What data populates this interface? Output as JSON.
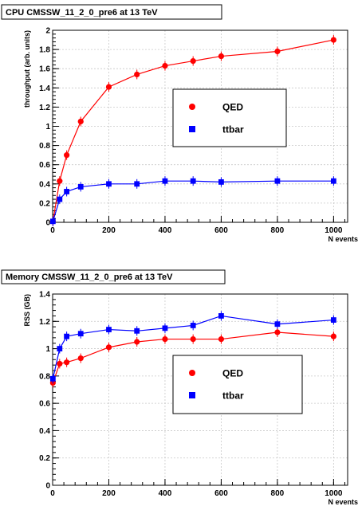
{
  "chart_data": [
    {
      "type": "line",
      "title": "CPU CMSSW_11_2_0_pre6 at 13 TeV",
      "xlabel": "N events",
      "ylabel": "throughput (arb. units)",
      "xlim": [
        0,
        1050
      ],
      "ylim": [
        0,
        2
      ],
      "x_ticks": [
        0,
        200,
        400,
        600,
        800,
        1000
      ],
      "y_ticks": [
        0,
        0.2,
        0.4,
        0.6,
        0.8,
        1,
        1.2,
        1.4,
        1.6,
        1.8,
        2
      ],
      "y_tick_labels": [
        "0",
        "0.2",
        "0.4",
        "0.6",
        "0.8",
        "1",
        "1.2",
        "1.4",
        "1.6",
        "1.8",
        "2"
      ],
      "grid": true,
      "legend_position": "center-right",
      "series": [
        {
          "name": "QED",
          "color": "#ff0000",
          "marker": "circle",
          "x": [
            1,
            25,
            50,
            100,
            200,
            300,
            400,
            500,
            600,
            800,
            1000
          ],
          "y": [
            0.01,
            0.43,
            0.7,
            1.05,
            1.41,
            1.54,
            1.63,
            1.68,
            1.73,
            1.78,
            1.9
          ]
        },
        {
          "name": "ttbar",
          "color": "#0000ff",
          "marker": "square",
          "x": [
            1,
            25,
            50,
            100,
            200,
            300,
            400,
            500,
            600,
            800,
            1000
          ],
          "y": [
            0.01,
            0.24,
            0.32,
            0.37,
            0.4,
            0.4,
            0.43,
            0.43,
            0.42,
            0.43,
            0.43
          ]
        }
      ]
    },
    {
      "type": "line",
      "title": "Memory CMSSW_11_2_0_pre6 at 13 TeV",
      "xlabel": "N events",
      "ylabel": "RSS (GB)",
      "xlim": [
        0,
        1050
      ],
      "ylim": [
        0,
        1.4
      ],
      "x_ticks": [
        0,
        200,
        400,
        600,
        800,
        1000
      ],
      "y_ticks": [
        0,
        0.2,
        0.4,
        0.6,
        0.8,
        1,
        1.2,
        1.4
      ],
      "y_tick_labels": [
        "0",
        "0.2",
        "0.4",
        "0.6",
        "0.8",
        "1",
        "1.2",
        "1.4"
      ],
      "grid": true,
      "legend_position": "center-right",
      "series": [
        {
          "name": "QED",
          "color": "#ff0000",
          "marker": "circle",
          "x": [
            1,
            25,
            50,
            100,
            200,
            300,
            400,
            500,
            600,
            800,
            1000
          ],
          "y": [
            0.75,
            0.89,
            0.9,
            0.93,
            1.01,
            1.05,
            1.07,
            1.07,
            1.07,
            1.12,
            1.09
          ]
        },
        {
          "name": "ttbar",
          "color": "#0000ff",
          "marker": "square",
          "x": [
            1,
            25,
            50,
            100,
            200,
            300,
            400,
            500,
            600,
            800,
            1000
          ],
          "y": [
            0.78,
            1.0,
            1.09,
            1.11,
            1.14,
            1.13,
            1.15,
            1.17,
            1.24,
            1.18,
            1.21
          ]
        }
      ]
    }
  ]
}
